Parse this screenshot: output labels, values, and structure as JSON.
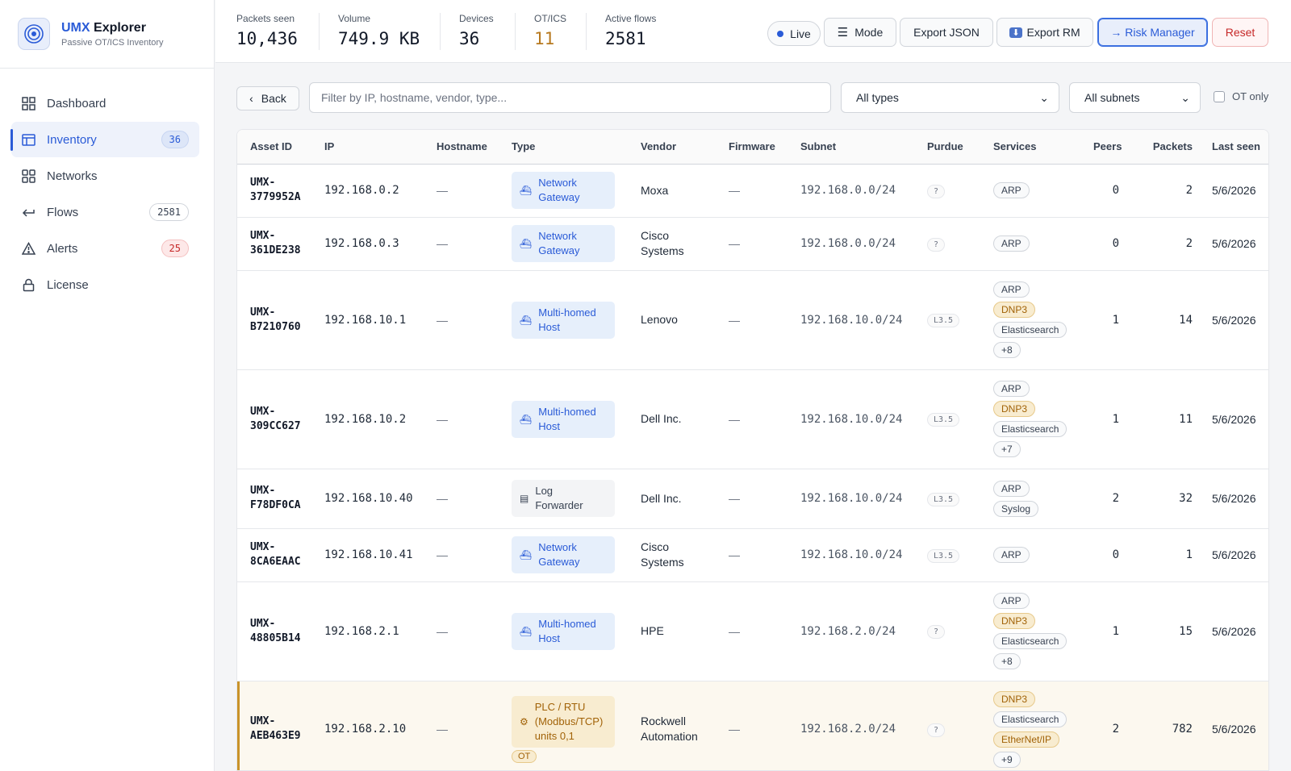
{
  "brand": {
    "title_accent": "UMX",
    "title_rest": "Explorer",
    "subtitle": "Passive OT/ICS Inventory"
  },
  "nav": [
    {
      "label": "Dashboard",
      "icon": "grid-icon",
      "badge": null,
      "active": false
    },
    {
      "label": "Inventory",
      "icon": "table-icon",
      "badge": "36",
      "badge_style": "blue",
      "active": true
    },
    {
      "label": "Networks",
      "icon": "network-icon",
      "badge": null,
      "active": false
    },
    {
      "label": "Flows",
      "icon": "return-arrow-icon",
      "badge": "2581",
      "badge_style": "plain",
      "active": false
    },
    {
      "label": "Alerts",
      "icon": "warning-triangle-icon",
      "badge": "25",
      "badge_style": "red",
      "active": false
    },
    {
      "label": "License",
      "icon": "lock-icon",
      "badge": null,
      "active": false
    }
  ],
  "stats": [
    {
      "label": "Packets seen",
      "value": "10,436"
    },
    {
      "label": "Volume",
      "value": "749.9 KB"
    },
    {
      "label": "Devices",
      "value": "36"
    },
    {
      "label": "OT/ICS",
      "value": "11"
    },
    {
      "label": "Active flows",
      "value": "2581"
    }
  ],
  "toolbar": {
    "live": "Live",
    "mode": "Mode",
    "export_json": "Export JSON",
    "export_rm": "Export RM",
    "risk_manager": "→ Risk Manager",
    "reset": "Reset"
  },
  "filters": {
    "back": "Back",
    "search_placeholder": "Filter by IP, hostname, vendor, type...",
    "type_select": "All types",
    "subnet_select": "All subnets",
    "ot_only": "OT only"
  },
  "columns": [
    "Asset ID",
    "IP",
    "Hostname",
    "Type",
    "Vendor",
    "Firmware",
    "Subnet",
    "Purdue",
    "Services",
    "Peers",
    "Packets",
    "Last seen"
  ],
  "rows": [
    {
      "id1": "UMX-",
      "id2": "3779952A",
      "ip": "192.168.0.2",
      "hostname": "—",
      "type1": "Network",
      "type2": "Gateway",
      "type3": "",
      "type_style": "blue",
      "type_icon": "gateway-icon",
      "ot": false,
      "vendor1": "Moxa",
      "vendor2": "",
      "firmware": "—",
      "subnet": "192.168.0.0/24",
      "purdue": "?",
      "services": [
        {
          "name": "ARP",
          "ot": false
        }
      ],
      "peers": "0",
      "packets": "2",
      "last_seen": "5/6/2026"
    },
    {
      "id1": "UMX-",
      "id2": "361DE238",
      "ip": "192.168.0.3",
      "hostname": "—",
      "type1": "Network",
      "type2": "Gateway",
      "type3": "",
      "type_style": "blue",
      "type_icon": "gateway-icon",
      "ot": false,
      "vendor1": "Cisco",
      "vendor2": "Systems",
      "firmware": "—",
      "subnet": "192.168.0.0/24",
      "purdue": "?",
      "services": [
        {
          "name": "ARP",
          "ot": false
        }
      ],
      "peers": "0",
      "packets": "2",
      "last_seen": "5/6/2026"
    },
    {
      "id1": "UMX-",
      "id2": "B7210760",
      "ip": "192.168.10.1",
      "hostname": "—",
      "type1": "Multi-homed",
      "type2": "Host",
      "type3": "",
      "type_style": "blue",
      "type_icon": "gateway-icon",
      "ot": false,
      "vendor1": "Lenovo",
      "vendor2": "",
      "firmware": "—",
      "subnet": "192.168.10.0/24",
      "purdue": "L3.5",
      "services": [
        {
          "name": "ARP",
          "ot": false
        },
        {
          "name": "DNP3",
          "ot": true
        },
        {
          "name": "Elasticsearch",
          "ot": false
        },
        {
          "name": "+8",
          "ot": false
        }
      ],
      "peers": "1",
      "packets": "14",
      "last_seen": "5/6/2026"
    },
    {
      "id1": "UMX-",
      "id2": "309CC627",
      "ip": "192.168.10.2",
      "hostname": "—",
      "type1": "Multi-homed",
      "type2": "Host",
      "type3": "",
      "type_style": "blue",
      "type_icon": "gateway-icon",
      "ot": false,
      "vendor1": "Dell Inc.",
      "vendor2": "",
      "firmware": "—",
      "subnet": "192.168.10.0/24",
      "purdue": "L3.5",
      "services": [
        {
          "name": "ARP",
          "ot": false
        },
        {
          "name": "DNP3",
          "ot": true
        },
        {
          "name": "Elasticsearch",
          "ot": false
        },
        {
          "name": "+7",
          "ot": false
        }
      ],
      "peers": "1",
      "packets": "11",
      "last_seen": "5/6/2026"
    },
    {
      "id1": "UMX-",
      "id2": "F78DF0CA",
      "ip": "192.168.10.40",
      "hostname": "—",
      "type1": "Log",
      "type2": "Forwarder",
      "type3": "",
      "type_style": "gray",
      "type_icon": "document-icon",
      "ot": false,
      "vendor1": "Dell Inc.",
      "vendor2": "",
      "firmware": "—",
      "subnet": "192.168.10.0/24",
      "purdue": "L3.5",
      "services": [
        {
          "name": "ARP",
          "ot": false
        },
        {
          "name": "Syslog",
          "ot": false
        }
      ],
      "peers": "2",
      "packets": "32",
      "last_seen": "5/6/2026"
    },
    {
      "id1": "UMX-",
      "id2": "8CA6EAAC",
      "ip": "192.168.10.41",
      "hostname": "—",
      "type1": "Network",
      "type2": "Gateway",
      "type3": "",
      "type_style": "blue",
      "type_icon": "gateway-icon",
      "ot": false,
      "vendor1": "Cisco",
      "vendor2": "Systems",
      "firmware": "—",
      "subnet": "192.168.10.0/24",
      "purdue": "L3.5",
      "services": [
        {
          "name": "ARP",
          "ot": false
        }
      ],
      "peers": "0",
      "packets": "1",
      "last_seen": "5/6/2026"
    },
    {
      "id1": "UMX-",
      "id2": "48805B14",
      "ip": "192.168.2.1",
      "hostname": "—",
      "type1": "Multi-homed",
      "type2": "Host",
      "type3": "",
      "type_style": "blue",
      "type_icon": "gateway-icon",
      "ot": false,
      "vendor1": "HPE",
      "vendor2": "",
      "firmware": "—",
      "subnet": "192.168.2.0/24",
      "purdue": "?",
      "services": [
        {
          "name": "ARP",
          "ot": false
        },
        {
          "name": "DNP3",
          "ot": true
        },
        {
          "name": "Elasticsearch",
          "ot": false
        },
        {
          "name": "+8",
          "ot": false
        }
      ],
      "peers": "1",
      "packets": "15",
      "last_seen": "5/6/2026"
    },
    {
      "id1": "UMX-",
      "id2": "AEB463E9",
      "ip": "192.168.2.10",
      "hostname": "—",
      "type1": "PLC / RTU",
      "type2": "(Modbus/TCP)",
      "type3": "units 0,1",
      "type_style": "amber",
      "type_icon": "gear-icon",
      "ot": true,
      "ot_label": "OT",
      "vendor1": "Rockwell",
      "vendor2": "Automation",
      "firmware": "—",
      "subnet": "192.168.2.0/24",
      "purdue": "?",
      "services": [
        {
          "name": "DNP3",
          "ot": true
        },
        {
          "name": "Elasticsearch",
          "ot": false
        },
        {
          "name": "EtherNet/IP",
          "ot": true
        },
        {
          "name": "+9",
          "ot": false
        }
      ],
      "peers": "2",
      "packets": "782",
      "last_seen": "5/6/2026"
    }
  ]
}
